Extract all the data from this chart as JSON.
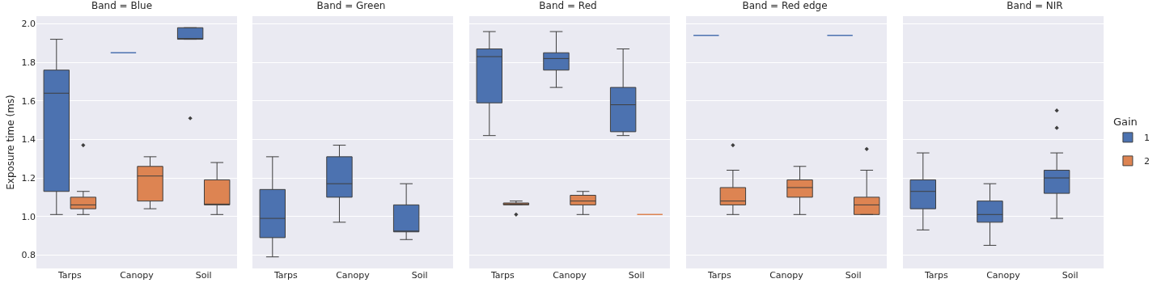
{
  "chart_data": [
    {
      "type": "box",
      "title": "Band = Blue",
      "ylabel": "Exposure time (ms)",
      "categories": [
        "Tarps",
        "Canopy",
        "Soil"
      ],
      "ylim": [
        0.73,
        2.04
      ],
      "yticks": [
        {
          "value": 0.8,
          "label": "0.8"
        },
        {
          "value": 1,
          "label": "1.0"
        },
        {
          "value": 1.2,
          "label": "1.2"
        },
        {
          "value": 1.4,
          "label": "1.4"
        },
        {
          "value": 1.6,
          "label": "1.6"
        },
        {
          "value": 1.8,
          "label": "1.8"
        },
        {
          "value": 2,
          "label": "2.0"
        }
      ],
      "grid": "y",
      "legend": false,
      "series": [
        {
          "color": "#4c72b0",
          "boxes": [
            {
              "low": 1.01,
              "q1": 1.13,
              "median": 1.64,
              "q3": 1.76,
              "high": 1.92
            },
            {
              "low": 1.85,
              "q1": 1.85,
              "median": 1.85,
              "q3": 1.85,
              "high": 1.85
            },
            {
              "low": 1.92,
              "q1": 1.92,
              "median": 1.92,
              "q3": 1.98,
              "high": 1.98,
              "outliers": [
                1.51
              ]
            }
          ]
        },
        {
          "color": "#dd8452",
          "boxes": [
            {
              "low": 1.01,
              "q1": 1.04,
              "median": 1.06,
              "q3": 1.1,
              "high": 1.13,
              "outliers": [
                1.37
              ]
            },
            {
              "low": 1.04,
              "q1": 1.08,
              "median": 1.21,
              "q3": 1.26,
              "high": 1.31
            },
            {
              "low": 1.01,
              "q1": 1.06,
              "median": 1.06,
              "q3": 1.19,
              "high": 1.28
            }
          ]
        }
      ]
    },
    {
      "type": "box",
      "title": "Band = Green",
      "categories": [
        "Tarps",
        "Canopy",
        "Soil"
      ],
      "ylim": [
        0.73,
        2.04
      ],
      "yticks": [
        0.8,
        1,
        1.2,
        1.4,
        1.6,
        1.8,
        2
      ],
      "tick_labels": "x",
      "grid": "y",
      "legend": false,
      "series": [
        {
          "color": "#4c72b0",
          "boxes": [
            {
              "low": 0.79,
              "q1": 0.89,
              "median": 0.99,
              "q3": 1.14,
              "high": 1.31
            },
            {
              "low": 0.97,
              "q1": 1.1,
              "median": 1.17,
              "q3": 1.31,
              "high": 1.37
            },
            {
              "low": 0.88,
              "q1": 0.92,
              "median": 0.92,
              "q3": 1.06,
              "high": 1.17
            }
          ]
        },
        {
          "color": "#dd8452",
          "boxes": [
            null,
            null,
            null
          ]
        }
      ]
    },
    {
      "type": "box",
      "title": "Band = Red",
      "categories": [
        "Tarps",
        "Canopy",
        "Soil"
      ],
      "ylim": [
        0.73,
        2.04
      ],
      "yticks": [
        0.8,
        1,
        1.2,
        1.4,
        1.6,
        1.8,
        2
      ],
      "tick_labels": "x",
      "grid": "y",
      "legend": false,
      "series": [
        {
          "color": "#4c72b0",
          "boxes": [
            {
              "low": 1.42,
              "q1": 1.59,
              "median": 1.83,
              "q3": 1.87,
              "high": 1.96
            },
            {
              "low": 1.67,
              "q1": 1.76,
              "median": 1.82,
              "q3": 1.85,
              "high": 1.96
            },
            {
              "low": 1.42,
              "q1": 1.44,
              "median": 1.58,
              "q3": 1.67,
              "high": 1.87
            }
          ]
        },
        {
          "color": "#dd8452",
          "boxes": [
            {
              "low": 1.06,
              "q1": 1.06,
              "median": 1.065,
              "q3": 1.07,
              "high": 1.08,
              "outliers": [
                1.01
              ]
            },
            {
              "low": 1.01,
              "q1": 1.06,
              "median": 1.08,
              "q3": 1.11,
              "high": 1.13
            },
            {
              "low": 1.01,
              "q1": 1.01,
              "median": 1.01,
              "q3": 1.01,
              "high": 1.01
            }
          ]
        }
      ]
    },
    {
      "type": "box",
      "title": "Band = Red edge",
      "categories": [
        "Tarps",
        "Canopy",
        "Soil"
      ],
      "ylim": [
        0.73,
        2.04
      ],
      "yticks": [
        0.8,
        1,
        1.2,
        1.4,
        1.6,
        1.8,
        2
      ],
      "tick_labels": "x",
      "grid": "y",
      "legend": false,
      "series": [
        {
          "color": "#4c72b0",
          "boxes": [
            {
              "low": 1.94,
              "q1": 1.94,
              "median": 1.94,
              "q3": 1.94,
              "high": 1.94
            },
            null,
            {
              "low": 1.94,
              "q1": 1.94,
              "median": 1.94,
              "q3": 1.94,
              "high": 1.94
            }
          ]
        },
        {
          "color": "#dd8452",
          "boxes": [
            {
              "low": 1.01,
              "q1": 1.06,
              "median": 1.08,
              "q3": 1.15,
              "high": 1.24,
              "outliers": [
                1.37
              ]
            },
            {
              "low": 1.01,
              "q1": 1.1,
              "median": 1.15,
              "q3": 1.19,
              "high": 1.26
            },
            {
              "low": 1.01,
              "q1": 1.01,
              "median": 1.06,
              "q3": 1.1,
              "high": 1.24,
              "outliers": [
                1.35
              ]
            }
          ]
        }
      ]
    },
    {
      "type": "box",
      "title": "Band = NIR",
      "categories": [
        "Tarps",
        "Canopy",
        "Soil"
      ],
      "ylim": [
        0.73,
        2.04
      ],
      "yticks": [
        0.8,
        1,
        1.2,
        1.4,
        1.6,
        1.8,
        2
      ],
      "tick_labels": "x",
      "grid": "y",
      "legend": "right",
      "legend_title": "Gain",
      "series": [
        {
          "name": "1",
          "color": "#4c72b0",
          "boxes": [
            {
              "low": 0.93,
              "q1": 1.04,
              "median": 1.13,
              "q3": 1.19,
              "high": 1.33
            },
            {
              "low": 0.85,
              "q1": 0.97,
              "median": 1.01,
              "q3": 1.08,
              "high": 1.17
            },
            {
              "low": 0.99,
              "q1": 1.12,
              "median": 1.2,
              "q3": 1.24,
              "high": 1.33,
              "outliers": [
                1.46,
                1.55
              ]
            }
          ]
        },
        {
          "name": "2",
          "color": "#dd8452",
          "boxes": [
            null,
            null,
            null
          ]
        }
      ]
    }
  ]
}
